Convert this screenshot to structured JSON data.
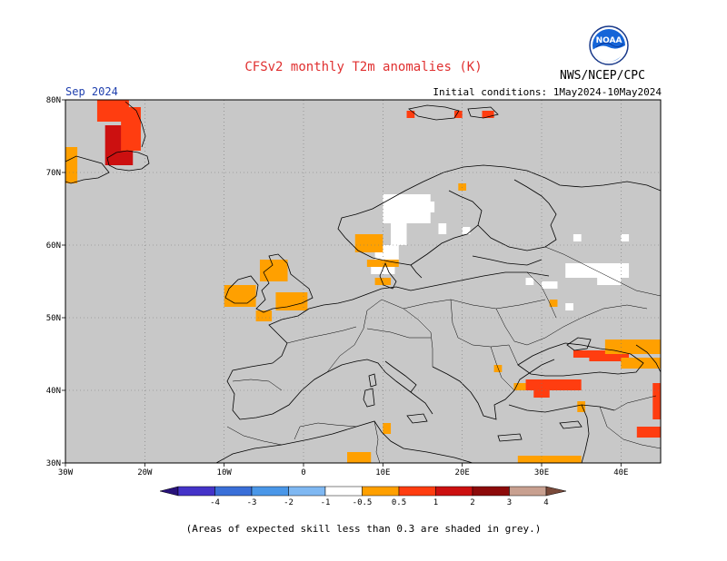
{
  "header": {
    "title": "CFSv2 monthly T2m anomalies (K)",
    "agency": "NWS/NCEP/CPC",
    "period": "Sep 2024",
    "initial_conditions": "Initial conditions: 1May2024-10May2024",
    "logo_text": "NOAA"
  },
  "map": {
    "lon_range": [
      -30,
      45
    ],
    "lat_range": [
      30,
      80
    ],
    "background_color": "#c8c8c8",
    "lon_ticks": [
      {
        "value": -30,
        "label": "30W"
      },
      {
        "value": -20,
        "label": "20W"
      },
      {
        "value": -10,
        "label": "10W"
      },
      {
        "value": 0,
        "label": "0"
      },
      {
        "value": 10,
        "label": "10E"
      },
      {
        "value": 20,
        "label": "20E"
      },
      {
        "value": 30,
        "label": "30E"
      },
      {
        "value": 40,
        "label": "40E"
      }
    ],
    "lat_ticks": [
      {
        "value": 30,
        "label": "30N"
      },
      {
        "value": 40,
        "label": "40N"
      },
      {
        "value": 50,
        "label": "50N"
      },
      {
        "value": 60,
        "label": "60N"
      },
      {
        "value": 70,
        "label": "70N"
      },
      {
        "value": 80,
        "label": "80N"
      }
    ],
    "anomaly_regions": [
      {
        "class": "0.5-1",
        "lon": [
          -30,
          -28.5
        ],
        "lat": [
          68.5,
          73.5
        ]
      },
      {
        "class": "2-3",
        "lon": [
          -25,
          -21.5
        ],
        "lat": [
          71,
          76.5
        ]
      },
      {
        "class": "1-2",
        "lon": [
          -26,
          -22
        ],
        "lat": [
          77,
          80
        ]
      },
      {
        "class": "1-2",
        "lon": [
          -23,
          -20.5
        ],
        "lat": [
          73,
          79
        ]
      },
      {
        "class": "1-2",
        "lon": [
          13,
          14
        ],
        "lat": [
          77.5,
          78.5
        ]
      },
      {
        "class": "1-2",
        "lon": [
          19,
          20
        ],
        "lat": [
          77.5,
          78.5
        ]
      },
      {
        "class": "1-2",
        "lon": [
          22.5,
          24
        ],
        "lat": [
          77.5,
          78.5
        ]
      },
      {
        "class": "0.5-1",
        "lon": [
          -5.5,
          -2
        ],
        "lat": [
          55,
          58
        ]
      },
      {
        "class": "0.5-1",
        "lon": [
          -10,
          -6
        ],
        "lat": [
          51.5,
          54.5
        ]
      },
      {
        "class": "0.5-1",
        "lon": [
          -3.5,
          0.5
        ],
        "lat": [
          51,
          53.5
        ]
      },
      {
        "class": "0.5-1",
        "lon": [
          -6,
          -4
        ],
        "lat": [
          49.5,
          51
        ]
      },
      {
        "class": "0.5-1",
        "lon": [
          6.5,
          10
        ],
        "lat": [
          59,
          61.5
        ]
      },
      {
        "class": "0.5-1",
        "lon": [
          8,
          12
        ],
        "lat": [
          57,
          58
        ]
      },
      {
        "class": "0.5-1",
        "lon": [
          9,
          11
        ],
        "lat": [
          54.5,
          55.5
        ]
      },
      {
        "class": "0.5-1",
        "lon": [
          19.5,
          20.5
        ],
        "lat": [
          67.5,
          68.5
        ]
      },
      {
        "class": "0.5-1",
        "lon": [
          31,
          32
        ],
        "lat": [
          51.5,
          52.5
        ]
      },
      {
        "class": "1-2",
        "lon": [
          34,
          40
        ],
        "lat": [
          44.5,
          45.5
        ]
      },
      {
        "class": "0.5-1",
        "lon": [
          38,
          45
        ],
        "lat": [
          45,
          47
        ]
      },
      {
        "class": "1-2",
        "lon": [
          36,
          41
        ],
        "lat": [
          44,
          45
        ]
      },
      {
        "class": "0.5-1",
        "lon": [
          40,
          45
        ],
        "lat": [
          43,
          44.5
        ]
      },
      {
        "class": "1-2",
        "lon": [
          28,
          35
        ],
        "lat": [
          40,
          41.5
        ]
      },
      {
        "class": "1-2",
        "lon": [
          29,
          31
        ],
        "lat": [
          39,
          40
        ]
      },
      {
        "class": "0.5-1",
        "lon": [
          26.5,
          28
        ],
        "lat": [
          40,
          41
        ]
      },
      {
        "class": "0.5-1",
        "lon": [
          24,
          25
        ],
        "lat": [
          42.5,
          43.5
        ]
      },
      {
        "class": "0.5-1",
        "lon": [
          34.5,
          35.5
        ],
        "lat": [
          37,
          38.5
        ]
      },
      {
        "class": "1-2",
        "lon": [
          44,
          45
        ],
        "lat": [
          36,
          41
        ]
      },
      {
        "class": "1-2",
        "lon": [
          42,
          45
        ],
        "lat": [
          33.5,
          35
        ]
      },
      {
        "class": "0.5-1",
        "lon": [
          10,
          11
        ],
        "lat": [
          34,
          35.5
        ]
      },
      {
        "class": "0.5-1",
        "lon": [
          5.5,
          8.5
        ],
        "lat": [
          30,
          31.5
        ]
      },
      {
        "class": "0.5-1",
        "lon": [
          27,
          35
        ],
        "lat": [
          30,
          31
        ]
      }
    ],
    "low_skill_white_regions": [
      {
        "lon": [
          10,
          16
        ],
        "lat": [
          63,
          67
        ]
      },
      {
        "lon": [
          11,
          13
        ],
        "lat": [
          60,
          63
        ]
      },
      {
        "lon": [
          9,
          12
        ],
        "lat": [
          57.5,
          60
        ]
      },
      {
        "lon": [
          8.5,
          11.5
        ],
        "lat": [
          56,
          57.5
        ]
      },
      {
        "lon": [
          14,
          16.5
        ],
        "lat": [
          64.5,
          66
        ]
      },
      {
        "lon": [
          17,
          18
        ],
        "lat": [
          61.5,
          63
        ]
      },
      {
        "lon": [
          20,
          21
        ],
        "lat": [
          61.5,
          62.5
        ]
      },
      {
        "lon": [
          33,
          41
        ],
        "lat": [
          55.5,
          57.5
        ]
      },
      {
        "lon": [
          37,
          40
        ],
        "lat": [
          54.5,
          55.5
        ]
      },
      {
        "lon": [
          28,
          29
        ],
        "lat": [
          54.5,
          55.5
        ]
      },
      {
        "lon": [
          30,
          32
        ],
        "lat": [
          54,
          55
        ]
      },
      {
        "lon": [
          33,
          34
        ],
        "lat": [
          51,
          52
        ]
      },
      {
        "lon": [
          34,
          35
        ],
        "lat": [
          60.5,
          61.5
        ]
      },
      {
        "lon": [
          40,
          41
        ],
        "lat": [
          60.5,
          61.5
        ]
      }
    ]
  },
  "colorbar": {
    "tick_labels": [
      "-4",
      "-3",
      "-2",
      "-1",
      "-0.5",
      "0.5",
      "1",
      "2",
      "3",
      "4"
    ],
    "colors": [
      "#28127a",
      "#4433c8",
      "#3a6fd8",
      "#4a97e8",
      "#7fb8f2",
      "#ffffff",
      "#ffa000",
      "#ff3d10",
      "#cc1010",
      "#8c0a0a",
      "#c8a090",
      "#7a4a3a"
    ]
  },
  "footnote": "(Areas of expected skill less than 0.3 are shaded in grey.)"
}
